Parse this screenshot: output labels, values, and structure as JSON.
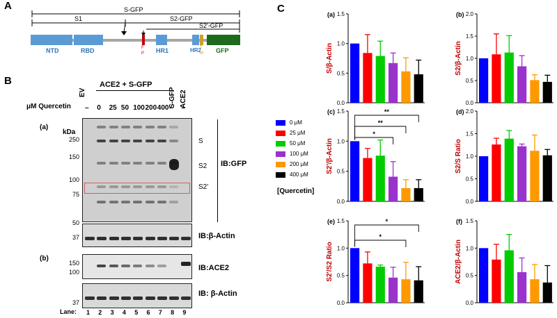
{
  "panels": {
    "a": "A",
    "b": "B",
    "c": "C"
  },
  "schematic": {
    "spans": {
      "s_gfp": "S-GFP",
      "s1": "S1",
      "s2_gfp": "S2-GFP",
      "s2p_gfp": "S2'-GFP"
    },
    "domains": {
      "ntd": "NTD",
      "rbd": "RBD",
      "fp_f": "F",
      "fp_p": "P",
      "hr1": "HR1",
      "hr2": "HR2",
      "tm_t": "T",
      "tm_m": "M",
      "gfp": "GFP"
    },
    "colors": {
      "blue": "#5b9bd5",
      "gray": "#a6a6a6",
      "red": "#c00000",
      "gold": "#c9a227",
      "green": "#1e6b1e"
    }
  },
  "blot": {
    "group_label": "ACE2 + S-GFP",
    "col_headers": {
      "ev": "EV",
      "s_gfp": "S-GFP",
      "ace2": "ACE2"
    },
    "quercetin_label": "μM Quercetin",
    "doses": [
      "–",
      "0",
      "25",
      "50",
      "100",
      "200",
      "400",
      "–",
      "–"
    ],
    "kda": "kDa",
    "sub_a": "(a)",
    "sub_b": "(b)",
    "mw_a": [
      "250",
      "150",
      "100",
      "75",
      "50",
      "37"
    ],
    "mw_b": [
      "150",
      "100",
      "37"
    ],
    "band_labels": {
      "s": "S",
      "s2": "S2",
      "s2p": "S2'"
    },
    "ib": {
      "gfp": "IB:GFP",
      "actin1": "IB:β-Actin",
      "ace2": "IB:ACE2",
      "actin2": "IB: β-Actin"
    },
    "lane_label": "Lane:",
    "lanes": [
      "1",
      "2",
      "3",
      "4",
      "5",
      "6",
      "7",
      "8",
      "9"
    ]
  },
  "legend": {
    "items": [
      "0 μM",
      "25 μM",
      "50 μM",
      "100 μM",
      "200 μM",
      "400 μM"
    ],
    "colors": [
      "#0000ff",
      "#ff0000",
      "#00cc00",
      "#9933cc",
      "#ff9900",
      "#000000"
    ],
    "title": "[Quercetin]"
  },
  "chart_data": [
    {
      "panel": "(a)",
      "type": "bar",
      "ylabel": "S/β-Actin",
      "ylim": [
        0,
        1.5
      ],
      "yticks": [
        "0.0",
        "0.5",
        "1.0",
        "1.5"
      ],
      "categories": [
        "0 μM",
        "25 μM",
        "50 μM",
        "100 μM",
        "200 μM",
        "400 μM"
      ],
      "values": [
        1.0,
        0.84,
        0.79,
        0.67,
        0.53,
        0.48
      ],
      "errors": [
        0,
        0.31,
        0.25,
        0.17,
        0.23,
        0.24
      ],
      "significance": []
    },
    {
      "panel": "(b)",
      "type": "bar",
      "ylabel": "S2/β-Actin",
      "ylim": [
        0,
        2.0
      ],
      "yticks": [
        "0.0",
        "0.5",
        "1.0",
        "1.5",
        "2.0"
      ],
      "categories": [
        "0 μM",
        "25 μM",
        "50 μM",
        "100 μM",
        "200 μM",
        "400 μM"
      ],
      "values": [
        1.0,
        1.09,
        1.13,
        0.82,
        0.51,
        0.47
      ],
      "errors": [
        0,
        0.46,
        0.38,
        0.24,
        0.12,
        0.15
      ],
      "significance": []
    },
    {
      "panel": "(c)",
      "type": "bar",
      "ylabel": "S2'/β-Actin",
      "ylim": [
        0,
        1.5
      ],
      "yticks": [
        "0.0",
        "0.5",
        "1.0",
        "1.5"
      ],
      "categories": [
        "0 μM",
        "25 μM",
        "50 μM",
        "100 μM",
        "200 μM",
        "400 μM"
      ],
      "values": [
        1.0,
        0.72,
        0.76,
        0.41,
        0.22,
        0.22
      ],
      "errors": [
        0,
        0.16,
        0.26,
        0.25,
        0.14,
        0.14
      ],
      "significance": [
        "*",
        "**",
        "**"
      ]
    },
    {
      "panel": "(d)",
      "type": "bar",
      "ylabel": "S2/S Ratio",
      "ylim": [
        0,
        2.0
      ],
      "yticks": [
        "0.0",
        "0.5",
        "1.0",
        "1.5",
        "2.0"
      ],
      "categories": [
        "0 μM",
        "25 μM",
        "50 μM",
        "100 μM",
        "200 μM",
        "400 μM"
      ],
      "values": [
        1.0,
        1.26,
        1.39,
        1.22,
        1.12,
        1.02
      ],
      "errors": [
        0,
        0.14,
        0.18,
        0.05,
        0.35,
        0.13
      ],
      "significance": []
    },
    {
      "panel": "(e)",
      "type": "bar",
      "ylabel": "S2'/S2 Ratio",
      "ylim": [
        0,
        1.5
      ],
      "yticks": [
        "0.0",
        "0.5",
        "1.0",
        "1.5"
      ],
      "categories": [
        "0 μM",
        "25 μM",
        "50 μM",
        "100 μM",
        "200 μM",
        "400 μM"
      ],
      "values": [
        1.0,
        0.72,
        0.66,
        0.46,
        0.43,
        0.41
      ],
      "errors": [
        0,
        0.21,
        0.03,
        0.19,
        0.31,
        0.25
      ],
      "significance": [
        "*",
        "*"
      ]
    },
    {
      "panel": "(f)",
      "type": "bar",
      "ylabel": "ACE2/β-Actin",
      "ylim": [
        0,
        1.5
      ],
      "yticks": [
        "0.0",
        "0.5",
        "1.0",
        "1.5"
      ],
      "categories": [
        "0 μM",
        "25 μM",
        "50 μM",
        "100 μM",
        "200 μM",
        "400 μM"
      ],
      "values": [
        1.0,
        0.79,
        0.96,
        0.56,
        0.43,
        0.37
      ],
      "errors": [
        0,
        0.28,
        0.29,
        0.26,
        0.27,
        0.31
      ],
      "significance": []
    }
  ]
}
